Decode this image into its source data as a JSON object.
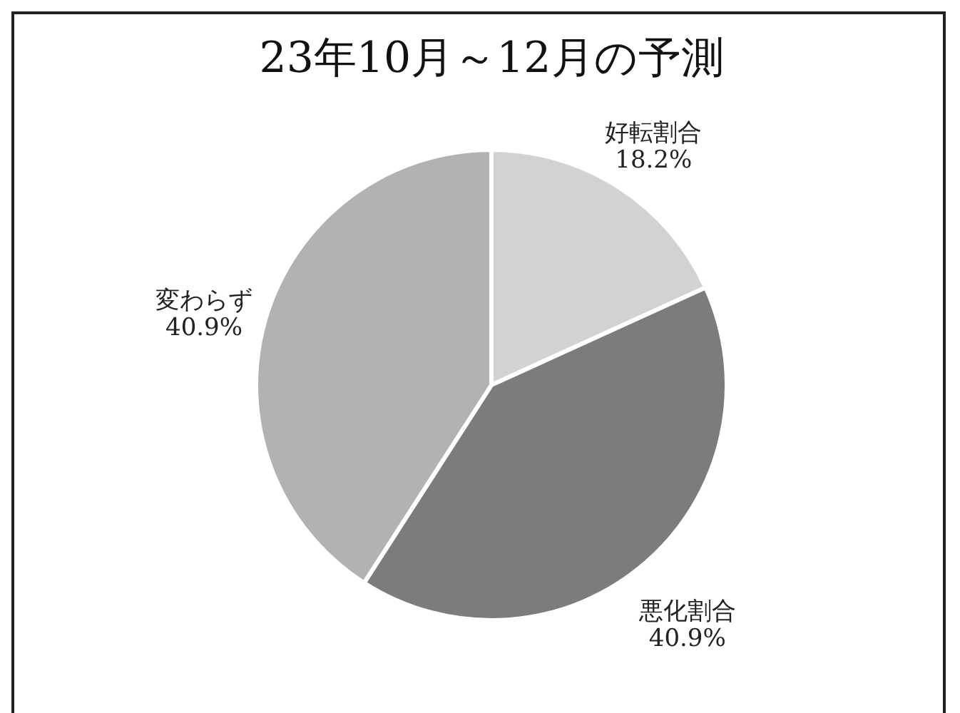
{
  "chart_data": {
    "type": "pie",
    "title": "23年10月～12月の予測",
    "categories": [
      "好転割合",
      "悪化割合",
      "変わらず"
    ],
    "values": [
      18.2,
      40.9,
      40.9
    ],
    "colors": [
      "#d2d2d2",
      "#7c7c7c",
      "#b2b2b2"
    ],
    "value_labels": [
      "18.2%",
      "40.9%",
      "40.9%"
    ],
    "legend": false
  }
}
